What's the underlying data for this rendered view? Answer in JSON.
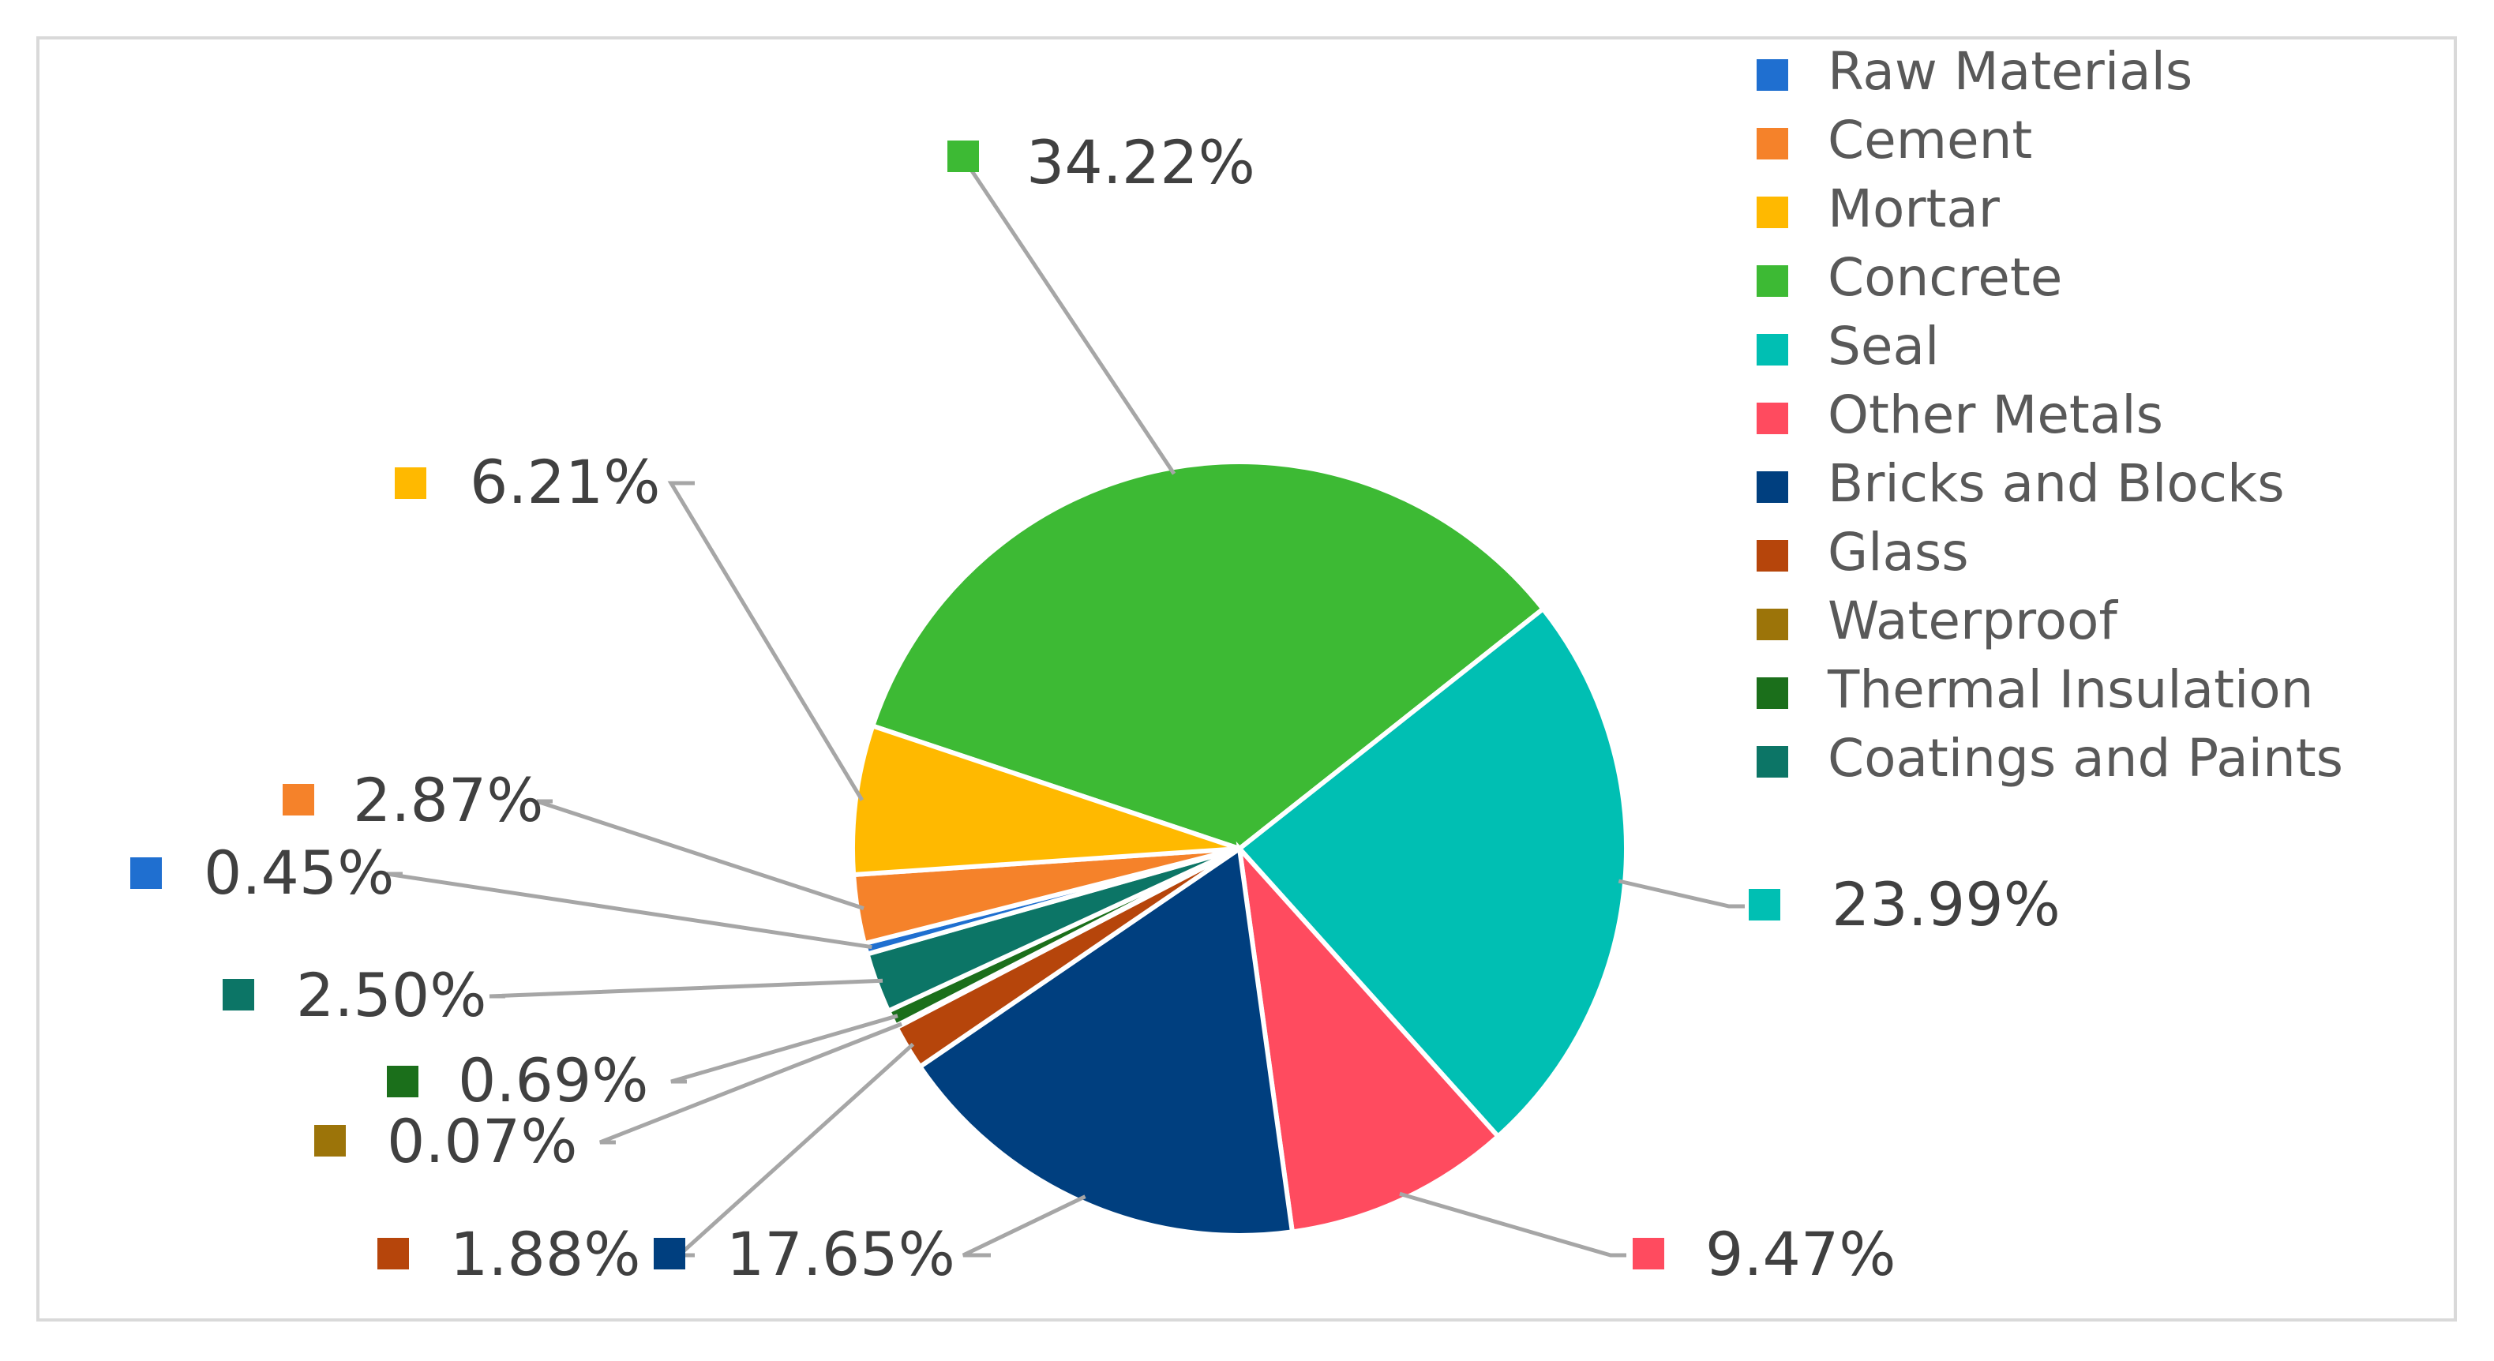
{
  "chart_data": {
    "type": "pie",
    "title": "",
    "legend_position": "top-right",
    "slices": [
      {
        "name": "Raw Materials",
        "value": 0.45,
        "label": "0.45%",
        "color": "#1f6fd0"
      },
      {
        "name": "Cement",
        "value": 2.87,
        "label": "2.87%",
        "color": "#f5822a"
      },
      {
        "name": "Mortar",
        "value": 6.21,
        "label": "6.21%",
        "color": "#ffb900"
      },
      {
        "name": "Concrete",
        "value": 34.22,
        "label": "34.22%",
        "color": "#3dba34"
      },
      {
        "name": "Seal",
        "value": 23.99,
        "label": "23.99%",
        "color": "#00bfb3"
      },
      {
        "name": "Other Metals",
        "value": 9.47,
        "label": "9.47%",
        "color": "#ff4b5f"
      },
      {
        "name": "Bricks and Blocks",
        "value": 17.65,
        "label": "17.65%",
        "color": "#003f7f"
      },
      {
        "name": "Glass",
        "value": 1.88,
        "label": "1.88%",
        "color": "#b6450b"
      },
      {
        "name": "Waterproof",
        "value": 0.07,
        "label": "0.07%",
        "color": "#9c7409"
      },
      {
        "name": "Thermal Insulation",
        "value": 0.69,
        "label": "0.69%",
        "color": "#1b6f1b"
      },
      {
        "name": "Coatings and Paints",
        "value": 2.5,
        "label": "2.50%",
        "color": "#0c7566"
      }
    ]
  }
}
